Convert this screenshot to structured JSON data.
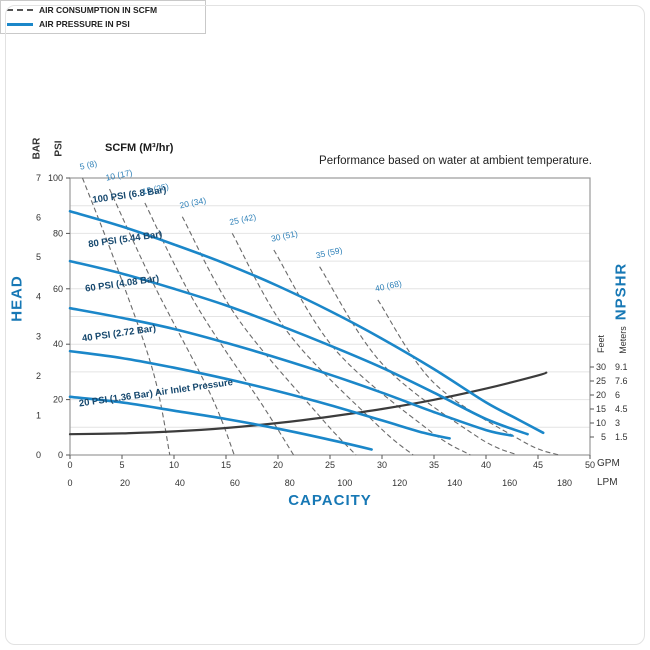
{
  "note": "Performance based on water at ambient temperature.",
  "scfm_header": "SCFM (M³/hr)",
  "legend": [
    {
      "style": "dashed",
      "label": "AIR CONSUMPTION IN SCFM"
    },
    {
      "style": "solid",
      "label": "AIR PRESSURE IN PSI"
    }
  ],
  "colors": {
    "pressure_curve": "#1b87c9",
    "pressure_label": "#16486e",
    "scfm_label": "#2e80b8",
    "consumption_curve": "#6a6a6a",
    "npshr_curve": "#3c3c3c",
    "axis_title_blue": "#1778b5",
    "axis_text": "#333333",
    "gridline": "#e4e4e4",
    "plot_border": "#9a9a9a"
  },
  "chart_data": {
    "type": "line",
    "title": "Performance based on water at ambient temperature.",
    "grid": "horizontal",
    "legend_position": "top-right",
    "x_axis": {
      "label": "CAPACITY",
      "gpm_range": [
        0,
        50
      ],
      "units": [
        {
          "name": "GPM",
          "ticks": [
            0,
            5,
            10,
            15,
            20,
            25,
            30,
            35,
            40,
            45,
            50
          ]
        },
        {
          "name": "LPM",
          "ticks": [
            0,
            20,
            40,
            60,
            80,
            100,
            120,
            140,
            160,
            180
          ]
        }
      ]
    },
    "y_axis": {
      "label": "HEAD",
      "psi_range": [
        0,
        100
      ],
      "units": [
        {
          "name": "BAR",
          "ticks": [
            7,
            6,
            5,
            4,
            3,
            2,
            1,
            0
          ]
        },
        {
          "name": "PSI",
          "ticks": [
            100,
            80,
            60,
            40,
            20,
            0
          ]
        }
      ]
    },
    "right_axis": {
      "label": "NPSHR",
      "units": [
        {
          "name": "Feet",
          "ticks": [
            30,
            25,
            20,
            15,
            10,
            5
          ]
        },
        {
          "name": "Meters",
          "ticks": [
            9.1,
            7.6,
            6,
            4.5,
            3,
            1.5
          ]
        }
      ]
    },
    "air_pressure_curves": [
      {
        "label": "100 PSI (6.8 Bar)",
        "label_pos": [
          2.2,
          91
        ],
        "points": [
          [
            0,
            88
          ],
          [
            5,
            82.5
          ],
          [
            10,
            76
          ],
          [
            15,
            69
          ],
          [
            20,
            61
          ],
          [
            25,
            52
          ],
          [
            30,
            42
          ],
          [
            35,
            31
          ],
          [
            40,
            19
          ],
          [
            43,
            13
          ],
          [
            45.5,
            8
          ]
        ]
      },
      {
        "label": "80 PSI (5.44 Bar)",
        "label_pos": [
          1.8,
          75
        ],
        "points": [
          [
            0,
            70
          ],
          [
            5,
            65.5
          ],
          [
            10,
            60
          ],
          [
            15,
            54
          ],
          [
            20,
            47
          ],
          [
            25,
            39.5
          ],
          [
            30,
            31.5
          ],
          [
            35,
            22.5
          ],
          [
            40,
            13
          ],
          [
            44,
            7.5
          ]
        ]
      },
      {
        "label": "60 PSI (4.08 Bar)",
        "label_pos": [
          1.5,
          59
        ],
        "points": [
          [
            0,
            53
          ],
          [
            5,
            49.5
          ],
          [
            10,
            45.5
          ],
          [
            15,
            40.5
          ],
          [
            20,
            35
          ],
          [
            25,
            29
          ],
          [
            30,
            22.5
          ],
          [
            35,
            15.5
          ],
          [
            40,
            9
          ],
          [
            42.5,
            7
          ]
        ]
      },
      {
        "label": "40 PSI (2.72 Bar)",
        "label_pos": [
          1.2,
          41
        ],
        "points": [
          [
            0,
            37.5
          ],
          [
            5,
            35
          ],
          [
            10,
            31.5
          ],
          [
            15,
            27.5
          ],
          [
            20,
            23
          ],
          [
            25,
            18
          ],
          [
            30,
            12.5
          ],
          [
            34,
            8
          ],
          [
            36.5,
            6
          ]
        ]
      },
      {
        "label": "20 PSI (1.36 Bar) Air Inlet Pressure",
        "label_pos": [
          0.9,
          17.5
        ],
        "points": [
          [
            0,
            21
          ],
          [
            5,
            19
          ],
          [
            10,
            16
          ],
          [
            15,
            13
          ],
          [
            20,
            9.5
          ],
          [
            25,
            5.5
          ],
          [
            29,
            2
          ]
        ]
      }
    ],
    "air_consumption_curves": [
      {
        "label": "5 (8)",
        "label_pos": [
          1.0,
          103
        ],
        "points": [
          [
            1.2,
            100
          ],
          [
            4.5,
            68
          ],
          [
            8,
            30
          ],
          [
            9.6,
            0
          ]
        ]
      },
      {
        "label": "10 (17)",
        "label_pos": [
          3.5,
          99
        ],
        "points": [
          [
            3.8,
            96
          ],
          [
            8,
            62
          ],
          [
            13.5,
            22
          ],
          [
            15.8,
            0
          ]
        ]
      },
      {
        "label": "15 (25)",
        "label_pos": [
          7.0,
          94
        ],
        "points": [
          [
            7.2,
            91
          ],
          [
            12,
            55
          ],
          [
            18.5,
            18
          ],
          [
            21.5,
            0
          ]
        ]
      },
      {
        "label": "20 (34)",
        "label_pos": [
          10.6,
          89
        ],
        "points": [
          [
            10.8,
            86
          ],
          [
            16,
            50
          ],
          [
            24,
            14
          ],
          [
            27.5,
            0
          ]
        ]
      },
      {
        "label": "25 (42)",
        "label_pos": [
          15.4,
          83
        ],
        "points": [
          [
            15.6,
            80
          ],
          [
            21,
            44
          ],
          [
            29.5,
            11
          ],
          [
            33,
            0
          ]
        ]
      },
      {
        "label": "30 (51)",
        "label_pos": [
          19.4,
          77
        ],
        "points": [
          [
            19.6,
            74
          ],
          [
            25.5,
            38
          ],
          [
            34.5,
            9
          ],
          [
            38.5,
            0
          ]
        ]
      },
      {
        "label": "35 (59)",
        "label_pos": [
          23.7,
          71
        ],
        "points": [
          [
            24,
            68
          ],
          [
            30,
            33
          ],
          [
            39,
            7
          ],
          [
            43,
            0
          ]
        ]
      },
      {
        "label": "40 (68)",
        "label_pos": [
          29.4,
          59
        ],
        "points": [
          [
            29.6,
            56
          ],
          [
            35,
            26
          ],
          [
            43.5,
            5
          ],
          [
            47,
            0
          ]
        ]
      }
    ],
    "npshr_curve": {
      "units": "gpm_vs_feet",
      "points": [
        [
          0,
          6
        ],
        [
          5,
          6.3
        ],
        [
          10,
          7
        ],
        [
          15,
          8.2
        ],
        [
          20,
          10
        ],
        [
          25,
          12.3
        ],
        [
          30,
          15
        ],
        [
          35,
          18.3
        ],
        [
          40,
          22.3
        ],
        [
          45,
          27
        ],
        [
          45.8,
          28
        ]
      ]
    }
  }
}
